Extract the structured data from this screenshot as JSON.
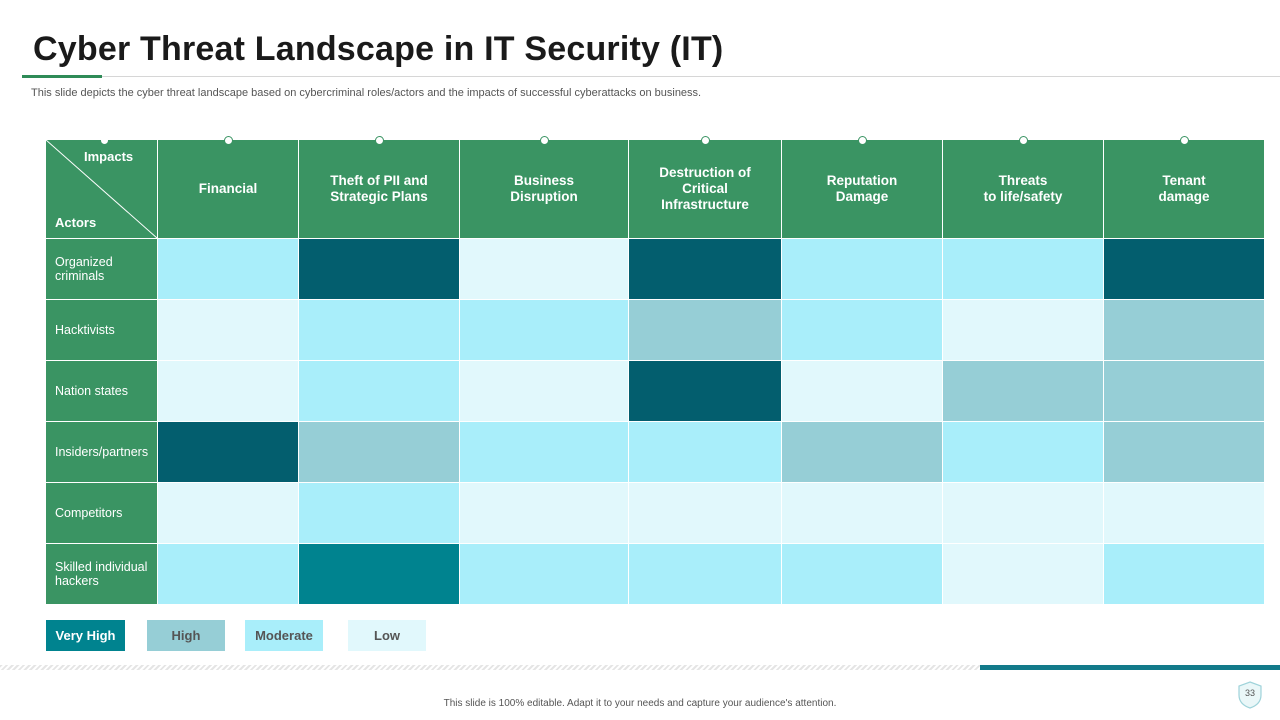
{
  "title": "Cyber Threat Landscape in IT Security (IT)",
  "subtitle": "This slide depicts the cyber threat landscape based on cybercriminal roles/actors and the impacts of successful cyberattacks on business.",
  "table": {
    "corner_top": "Impacts",
    "corner_bottom": "Actors",
    "columns": [
      "Financial",
      "Theft of PII and\nStrategic Plans",
      "Business\nDisruption",
      "Destruction  of\nCritical\nInfrastructure",
      "Reputation\nDamage",
      "Threats\nto life/safety",
      "Tenant\ndamage"
    ],
    "rows": [
      {
        "actor": "Organized\ncriminals",
        "levels": [
          "Moderate",
          "Very High",
          "Low",
          "Very High",
          "Moderate",
          "Moderate",
          "Very High"
        ]
      },
      {
        "actor": "Hacktivists",
        "levels": [
          "Low",
          "Moderate",
          "Moderate",
          "High",
          "Moderate",
          "Low",
          "High"
        ]
      },
      {
        "actor": "Nation states",
        "levels": [
          "Low",
          "Moderate",
          "Low",
          "Very High",
          "Low",
          "High",
          "High"
        ]
      },
      {
        "actor": "Insiders/partners",
        "levels": [
          "Very High",
          "High",
          "Moderate",
          "Moderate",
          "High",
          "Moderate",
          "High"
        ]
      },
      {
        "actor": "Competitors",
        "levels": [
          "Low",
          "Moderate",
          "Low",
          "Low",
          "Low",
          "Low",
          "Low"
        ]
      },
      {
        "actor": "Skilled individual\nhackers",
        "levels": [
          "Moderate",
          "Very High",
          "Moderate",
          "Moderate",
          "Moderate",
          "Low",
          "Moderate"
        ]
      }
    ]
  },
  "legend": {
    "very_high": "Very High",
    "high": "High",
    "moderate": "Moderate",
    "low": "Low"
  },
  "colors": {
    "header_green": "#3a9463",
    "very_high": "#00838f",
    "high": "#96ced6",
    "moderate": "#a9eefa",
    "low": "#e1f8fc"
  },
  "footer": "This slide is 100% editable.  Adapt it to your needs and capture your audience's attention.",
  "page_number": "33"
}
